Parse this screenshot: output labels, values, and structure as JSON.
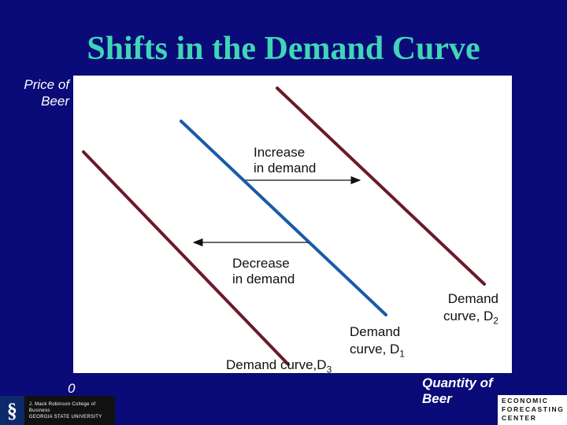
{
  "title": "Shifts in the Demand Curve",
  "axes": {
    "y_label": "Price of\nBeer",
    "x_label": "Quantity of\nBeer",
    "origin": "0"
  },
  "annotations": {
    "increase": "Increase\nin demand",
    "decrease": "Decrease\nin demand"
  },
  "curves": {
    "d1": {
      "prefix": "Demand\ncurve, D",
      "sub": "1",
      "color": "#1a5aa8"
    },
    "d2": {
      "prefix": "Demand\ncurve, D",
      "sub": "2",
      "color": "#6b1a28"
    },
    "d3": {
      "prefix": "Demand curve,D",
      "sub": "3",
      "color": "#6b1a28"
    }
  },
  "logos": {
    "left_text": "J. Mack Robinson College of Business\nGEORGIA STATE UNIVERSITY",
    "right_text": "ECONOMIC\nFORECASTING\nCENTER"
  }
}
